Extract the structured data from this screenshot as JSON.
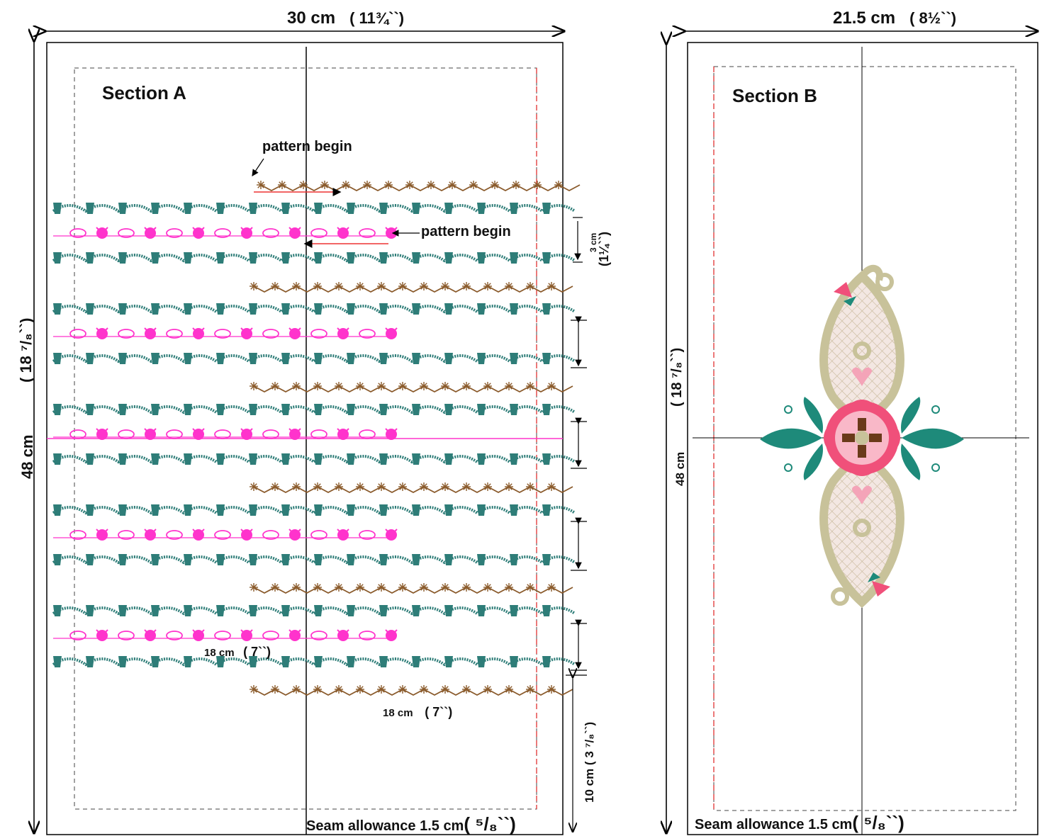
{
  "section_a": {
    "title": "Section A",
    "width_cm": "30 cm",
    "width_in": "( 11¾``)",
    "height_cm": "48 cm",
    "height_in": "( 18 ⁷/₈``)",
    "pattern_begin_top": "pattern begin",
    "pattern_begin_mid": "pattern begin",
    "spacing_cm": "3 cm",
    "spacing_in": "(1¼``)",
    "inner_len_cm": "18 cm",
    "inner_len_in": "( 7``)",
    "bottom_len_cm": "18 cm",
    "bottom_len_in": "( 7``)",
    "bottom_margin_cm": "10 cm",
    "bottom_margin_in": "( 3 ⁷/₈``)",
    "seam_text": "Seam allowance  1.5 cm",
    "seam_frac": "( ⁵/₈``)"
  },
  "section_b": {
    "title": "Section B",
    "width_cm": "21.5 cm",
    "width_in": "( 8½``)",
    "height_cm": "48 cm",
    "height_in": "( 18 ⁷/₈``)",
    "seam_text": "Seam allowance  1.5 cm",
    "seam_frac": "( ⁵/₈``)"
  },
  "colors": {
    "teal": "#2e7d78",
    "magenta": "#ff33cc",
    "brown": "#8a5a2b",
    "red_dash": "#e02020",
    "beige": "#c8c29a",
    "pink": "#f06a8a",
    "leaf": "#1e8a7a"
  }
}
